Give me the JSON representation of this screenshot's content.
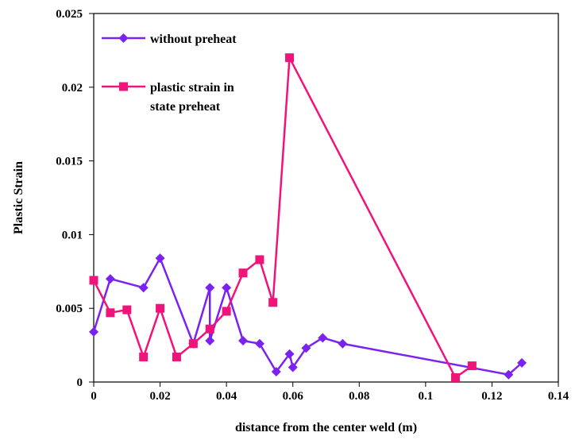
{
  "chart_data": {
    "type": "line",
    "title": "",
    "xlabel": "distance from the center weld (m)",
    "ylabel": "Plastic Strain",
    "xlim": [
      0,
      0.14
    ],
    "ylim": [
      0,
      0.025
    ],
    "x_ticks": [
      0,
      0.02,
      0.04,
      0.06,
      0.08,
      0.1,
      0.12,
      0.14
    ],
    "x_tick_labels": [
      "0",
      "0.02",
      "0.04",
      "0.06",
      "0.08",
      "0.1",
      "0.12",
      "0.14"
    ],
    "y_ticks": [
      0,
      0.005,
      0.01,
      0.015,
      0.02,
      0.025
    ],
    "y_tick_labels": [
      "0",
      "0.005",
      "0.01",
      "0.015",
      "0.02",
      "0.025"
    ],
    "grid": false,
    "legend_position": "top-left",
    "series": [
      {
        "name": "without preheat",
        "color": "#7B22F0",
        "marker": "diamond",
        "x": [
          0,
          0.005,
          0.015,
          0.02,
          0.03,
          0.035,
          0.035,
          0.04,
          0.045,
          0.05,
          0.055,
          0.059,
          0.06,
          0.064,
          0.069,
          0.075,
          0.125,
          0.129
        ],
        "y": [
          0.0034,
          0.007,
          0.0064,
          0.0084,
          0.0026,
          0.0064,
          0.0028,
          0.0064,
          0.0028,
          0.0026,
          0.0007,
          0.0019,
          0.001,
          0.0023,
          0.003,
          0.0026,
          0.0005,
          0.0013
        ]
      },
      {
        "name": "plastic strain in state preheat",
        "legend_lines": [
          "plastic strain in",
          "state preheat"
        ],
        "color": "#F0147A",
        "marker": "square",
        "x": [
          0,
          0.005,
          0.01,
          0.015,
          0.02,
          0.025,
          0.03,
          0.035,
          0.04,
          0.045,
          0.05,
          0.054,
          0.059,
          0.109,
          0.114
        ],
        "y": [
          0.0069,
          0.0047,
          0.0049,
          0.0017,
          0.005,
          0.0017,
          0.0026,
          0.0036,
          0.0048,
          0.0074,
          0.0083,
          0.0054,
          0.022,
          0.0003,
          0.0011
        ]
      }
    ]
  }
}
